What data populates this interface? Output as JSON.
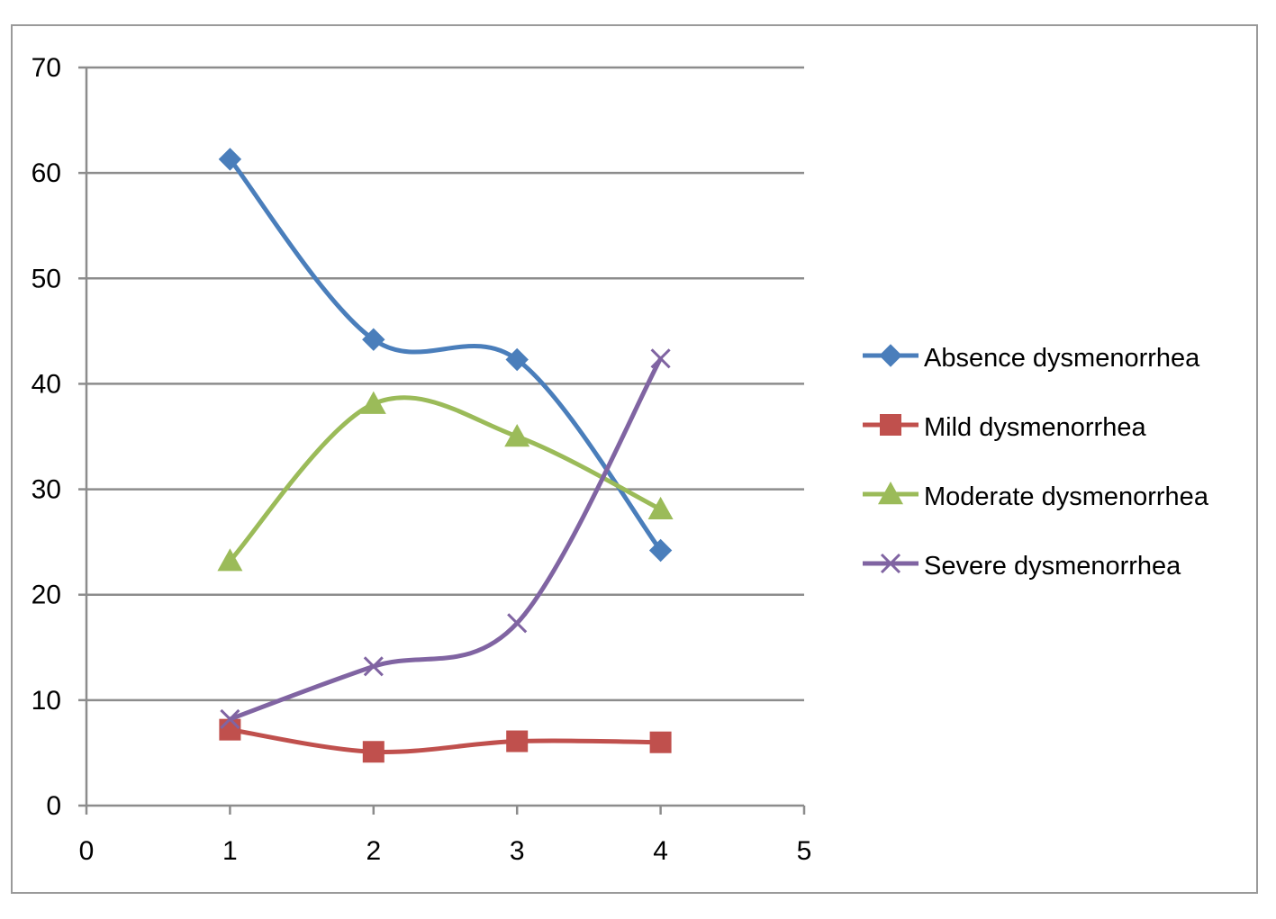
{
  "chart_data": {
    "type": "line",
    "title": "",
    "xlabel": "",
    "ylabel": "",
    "x": [
      1,
      2,
      3,
      4
    ],
    "xlim": [
      0,
      5
    ],
    "ylim": [
      0,
      70
    ],
    "x_ticks": [
      "0",
      "1",
      "2",
      "3",
      "4",
      "5"
    ],
    "y_ticks": [
      "0",
      "10",
      "20",
      "30",
      "40",
      "50",
      "60",
      "70"
    ],
    "grid": "horizontal major gridlines",
    "smoothed": true,
    "legend_position": "right",
    "series": [
      {
        "name": "Absence dysmenorrhea",
        "values": [
          61.3,
          44.2,
          42.3,
          24.2
        ],
        "color": "#4a7ebb",
        "marker": "diamond"
      },
      {
        "name": "Mild dysmenorrhea",
        "values": [
          7.2,
          5.1,
          6.1,
          6.0
        ],
        "color": "#c0504d",
        "marker": "square"
      },
      {
        "name": "Moderate dysmenorrhea",
        "values": [
          23.2,
          38.1,
          35.0,
          28.1
        ],
        "color": "#9bbb59",
        "marker": "triangle"
      },
      {
        "name": "Severe dysmenorrhea",
        "values": [
          8.2,
          13.2,
          17.3,
          42.4
        ],
        "color": "#8064a2",
        "marker": "x"
      }
    ]
  }
}
